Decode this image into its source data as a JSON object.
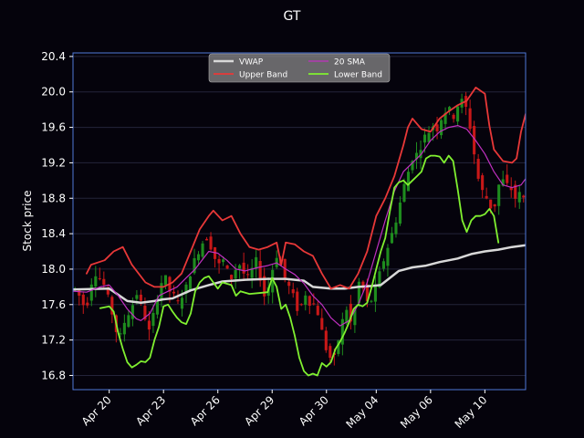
{
  "chart_data": {
    "type": "line",
    "title": "GT",
    "ylabel": "Stock price",
    "xlabel": "",
    "ylim": [
      16.64,
      20.44
    ],
    "yticks": [
      16.8,
      17.2,
      17.6,
      18.0,
      18.4,
      18.8,
      19.2,
      19.6,
      20.0,
      20.4
    ],
    "ytick_labels": [
      "16.8",
      "17.2",
      "17.6",
      "18.0",
      "18.4",
      "18.8",
      "19.2",
      "19.6",
      "20.0",
      "20.4"
    ],
    "xlim": [
      0,
      100
    ],
    "xticks": [
      8,
      20,
      32,
      44,
      56,
      67,
      79,
      91
    ],
    "xtick_labels": [
      "Apr 20",
      "Apr 23",
      "Apr 26",
      "Apr 29",
      "Apr 30",
      "May 04",
      "May 06",
      "May 10"
    ],
    "grid": true,
    "legend": {
      "placement": "top-center",
      "columns": 2
    },
    "colors": {
      "background": "#05030c",
      "frame": "#4f78d8",
      "grid": "#24243a",
      "text": "#ffffff",
      "up": "#1e8c1e",
      "down": "#c81818"
    },
    "candles": {
      "x_step": 0.6,
      "prices": [
        17.78,
        17.7,
        17.6,
        17.62,
        17.85,
        17.95,
        17.9,
        17.82,
        17.68,
        17.5,
        17.3,
        17.25,
        17.4,
        17.5,
        17.6,
        17.72,
        17.62,
        17.45,
        17.3,
        17.48,
        17.7,
        17.85,
        17.9,
        17.75,
        17.7,
        17.62,
        17.7,
        17.8,
        17.95,
        18.1,
        18.2,
        18.3,
        18.35,
        18.25,
        18.12,
        18.05,
        18.1,
        17.98,
        17.9,
        18.0,
        18.05,
        17.95,
        17.9,
        18.0,
        18.1,
        17.9,
        17.7,
        17.8,
        18.0,
        18.15,
        18.05,
        17.9,
        17.8,
        17.7,
        17.55,
        17.6,
        17.72,
        17.62,
        17.6,
        17.5,
        17.3,
        17.1,
        17.0,
        17.0,
        17.2,
        17.42,
        17.55,
        17.4,
        17.55,
        17.85,
        17.78,
        17.62,
        17.65,
        17.8,
        17.95,
        18.1,
        18.25,
        18.4,
        18.55,
        18.75,
        18.95,
        19.1,
        19.25,
        19.3,
        19.38,
        19.5,
        19.55,
        19.62,
        19.58,
        19.7,
        19.78,
        19.8,
        19.72,
        19.85,
        19.9,
        19.82,
        19.6,
        19.3,
        19.02,
        18.88,
        18.8,
        18.7,
        18.72,
        18.95,
        19.0,
        18.95,
        18.9,
        18.8,
        18.85,
        18.8
      ],
      "noise": 0.07
    },
    "series": [
      {
        "name": "VWAP",
        "color": "#d8d8d8",
        "width": 2.5,
        "points": [
          [
            0,
            17.77
          ],
          [
            8,
            17.78
          ],
          [
            12,
            17.64
          ],
          [
            15,
            17.62
          ],
          [
            18,
            17.64
          ],
          [
            20,
            17.66
          ],
          [
            22,
            17.67
          ],
          [
            26,
            17.76
          ],
          [
            30,
            17.82
          ],
          [
            33,
            17.86
          ],
          [
            38,
            17.88
          ],
          [
            43,
            17.89
          ],
          [
            47,
            17.89
          ],
          [
            51,
            17.87
          ],
          [
            53,
            17.8
          ],
          [
            57,
            17.78
          ],
          [
            60,
            17.78
          ],
          [
            63,
            17.8
          ],
          [
            66,
            17.81
          ],
          [
            68,
            17.82
          ],
          [
            70,
            17.9
          ],
          [
            72,
            17.98
          ],
          [
            75,
            18.02
          ],
          [
            78,
            18.04
          ],
          [
            81,
            18.08
          ],
          [
            85,
            18.12
          ],
          [
            88,
            18.17
          ],
          [
            91,
            18.2
          ],
          [
            94,
            18.22
          ],
          [
            97,
            18.25
          ],
          [
            100,
            18.27
          ]
        ]
      },
      {
        "name": "Upper Band",
        "color": "#e83838",
        "width": 1.8,
        "points": [
          [
            3,
            17.95
          ],
          [
            4,
            18.05
          ],
          [
            7,
            18.1
          ],
          [
            9,
            18.2
          ],
          [
            11,
            18.25
          ],
          [
            13,
            18.05
          ],
          [
            16,
            17.85
          ],
          [
            18,
            17.8
          ],
          [
            20,
            17.8
          ],
          [
            22,
            17.85
          ],
          [
            24,
            17.95
          ],
          [
            26,
            18.2
          ],
          [
            28,
            18.45
          ],
          [
            30,
            18.6
          ],
          [
            31,
            18.66
          ],
          [
            33,
            18.55
          ],
          [
            35,
            18.6
          ],
          [
            37,
            18.4
          ],
          [
            39,
            18.25
          ],
          [
            41,
            18.22
          ],
          [
            43,
            18.25
          ],
          [
            45,
            18.3
          ],
          [
            46,
            18.05
          ],
          [
            47,
            18.3
          ],
          [
            49,
            18.28
          ],
          [
            51,
            18.2
          ],
          [
            53,
            18.15
          ],
          [
            55,
            17.95
          ],
          [
            57,
            17.78
          ],
          [
            59,
            17.82
          ],
          [
            61,
            17.78
          ],
          [
            63,
            17.95
          ],
          [
            65,
            18.2
          ],
          [
            67,
            18.6
          ],
          [
            69,
            18.8
          ],
          [
            71,
            19.05
          ],
          [
            73,
            19.4
          ],
          [
            74,
            19.6
          ],
          [
            75,
            19.7
          ],
          [
            77,
            19.58
          ],
          [
            79,
            19.55
          ],
          [
            81,
            19.7
          ],
          [
            83,
            19.78
          ],
          [
            85,
            19.85
          ],
          [
            87,
            19.9
          ],
          [
            89,
            20.05
          ],
          [
            91,
            19.98
          ],
          [
            92,
            19.62
          ],
          [
            93,
            19.35
          ],
          [
            95,
            19.22
          ],
          [
            97,
            19.2
          ],
          [
            98,
            19.25
          ],
          [
            99,
            19.55
          ],
          [
            100,
            19.75
          ]
        ]
      },
      {
        "name": "20 SMA",
        "color": "#c030c0",
        "width": 1.2,
        "points": [
          [
            0,
            17.75
          ],
          [
            3,
            17.74
          ],
          [
            6,
            17.8
          ],
          [
            8,
            17.82
          ],
          [
            10,
            17.7
          ],
          [
            12,
            17.55
          ],
          [
            14,
            17.44
          ],
          [
            15,
            17.42
          ],
          [
            17,
            17.5
          ],
          [
            19,
            17.7
          ],
          [
            21,
            17.75
          ],
          [
            23,
            17.8
          ],
          [
            25,
            17.9
          ],
          [
            27,
            18.0
          ],
          [
            30,
            18.2
          ],
          [
            32,
            18.18
          ],
          [
            34,
            18.1
          ],
          [
            36,
            18.0
          ],
          [
            38,
            17.98
          ],
          [
            41,
            18.02
          ],
          [
            43,
            18.04
          ],
          [
            45,
            18.07
          ],
          [
            47,
            18.0
          ],
          [
            49,
            17.94
          ],
          [
            51,
            17.84
          ],
          [
            53,
            17.7
          ],
          [
            55,
            17.6
          ],
          [
            57,
            17.45
          ],
          [
            59,
            17.36
          ],
          [
            61,
            17.42
          ],
          [
            63,
            17.6
          ],
          [
            65,
            17.85
          ],
          [
            67,
            18.2
          ],
          [
            69,
            18.55
          ],
          [
            71,
            18.88
          ],
          [
            73,
            19.1
          ],
          [
            75,
            19.2
          ],
          [
            77,
            19.3
          ],
          [
            79,
            19.45
          ],
          [
            81,
            19.55
          ],
          [
            83,
            19.6
          ],
          [
            85,
            19.62
          ],
          [
            87,
            19.58
          ],
          [
            89,
            19.45
          ],
          [
            91,
            19.3
          ],
          [
            93,
            19.1
          ],
          [
            95,
            18.95
          ],
          [
            97,
            18.92
          ],
          [
            99,
            18.95
          ],
          [
            100,
            19.02
          ]
        ]
      },
      {
        "name": "Lower Band",
        "color": "#80f030",
        "width": 1.8,
        "points": [
          [
            6,
            17.56
          ],
          [
            8,
            17.58
          ],
          [
            9,
            17.52
          ],
          [
            10,
            17.28
          ],
          [
            11,
            17.1
          ],
          [
            12,
            16.95
          ],
          [
            13,
            16.89
          ],
          [
            14,
            16.92
          ],
          [
            15,
            16.96
          ],
          [
            16,
            16.95
          ],
          [
            17,
            17.0
          ],
          [
            18,
            17.2
          ],
          [
            19,
            17.35
          ],
          [
            20,
            17.58
          ],
          [
            21,
            17.6
          ],
          [
            22,
            17.52
          ],
          [
            23,
            17.45
          ],
          [
            24,
            17.4
          ],
          [
            25,
            17.38
          ],
          [
            26,
            17.5
          ],
          [
            27,
            17.75
          ],
          [
            28,
            17.85
          ],
          [
            29,
            17.9
          ],
          [
            30,
            17.92
          ],
          [
            31,
            17.85
          ],
          [
            32,
            17.78
          ],
          [
            33,
            17.85
          ],
          [
            35,
            17.82
          ],
          [
            36,
            17.7
          ],
          [
            37,
            17.75
          ],
          [
            39,
            17.72
          ],
          [
            41,
            17.73
          ],
          [
            43,
            17.74
          ],
          [
            44,
            17.9
          ],
          [
            45,
            17.8
          ],
          [
            46,
            17.55
          ],
          [
            47,
            17.6
          ],
          [
            48,
            17.45
          ],
          [
            49,
            17.25
          ],
          [
            50,
            17.0
          ],
          [
            51,
            16.85
          ],
          [
            52,
            16.8
          ],
          [
            53,
            16.82
          ],
          [
            54,
            16.8
          ],
          [
            55,
            16.94
          ],
          [
            56,
            16.9
          ],
          [
            57,
            16.95
          ],
          [
            58,
            17.1
          ],
          [
            59,
            17.18
          ],
          [
            60,
            17.28
          ],
          [
            61,
            17.4
          ],
          [
            62,
            17.55
          ],
          [
            63,
            17.6
          ],
          [
            64,
            17.58
          ],
          [
            65,
            17.62
          ],
          [
            66,
            17.8
          ],
          [
            67,
            18.0
          ],
          [
            68,
            18.2
          ],
          [
            69,
            18.35
          ],
          [
            70,
            18.65
          ],
          [
            71,
            18.92
          ],
          [
            72,
            18.98
          ],
          [
            73,
            19.0
          ],
          [
            74,
            18.95
          ],
          [
            75,
            19.0
          ],
          [
            76,
            19.05
          ],
          [
            77,
            19.1
          ],
          [
            78,
            19.25
          ],
          [
            79,
            19.28
          ],
          [
            80,
            19.28
          ],
          [
            81,
            19.27
          ],
          [
            82,
            19.2
          ],
          [
            83,
            19.28
          ],
          [
            84,
            19.22
          ],
          [
            85,
            18.9
          ],
          [
            86,
            18.55
          ],
          [
            87,
            18.42
          ],
          [
            88,
            18.55
          ],
          [
            89,
            18.6
          ],
          [
            90,
            18.6
          ],
          [
            91,
            18.62
          ],
          [
            92,
            18.68
          ],
          [
            93,
            18.6
          ],
          [
            94,
            18.3
          ]
        ]
      }
    ]
  }
}
